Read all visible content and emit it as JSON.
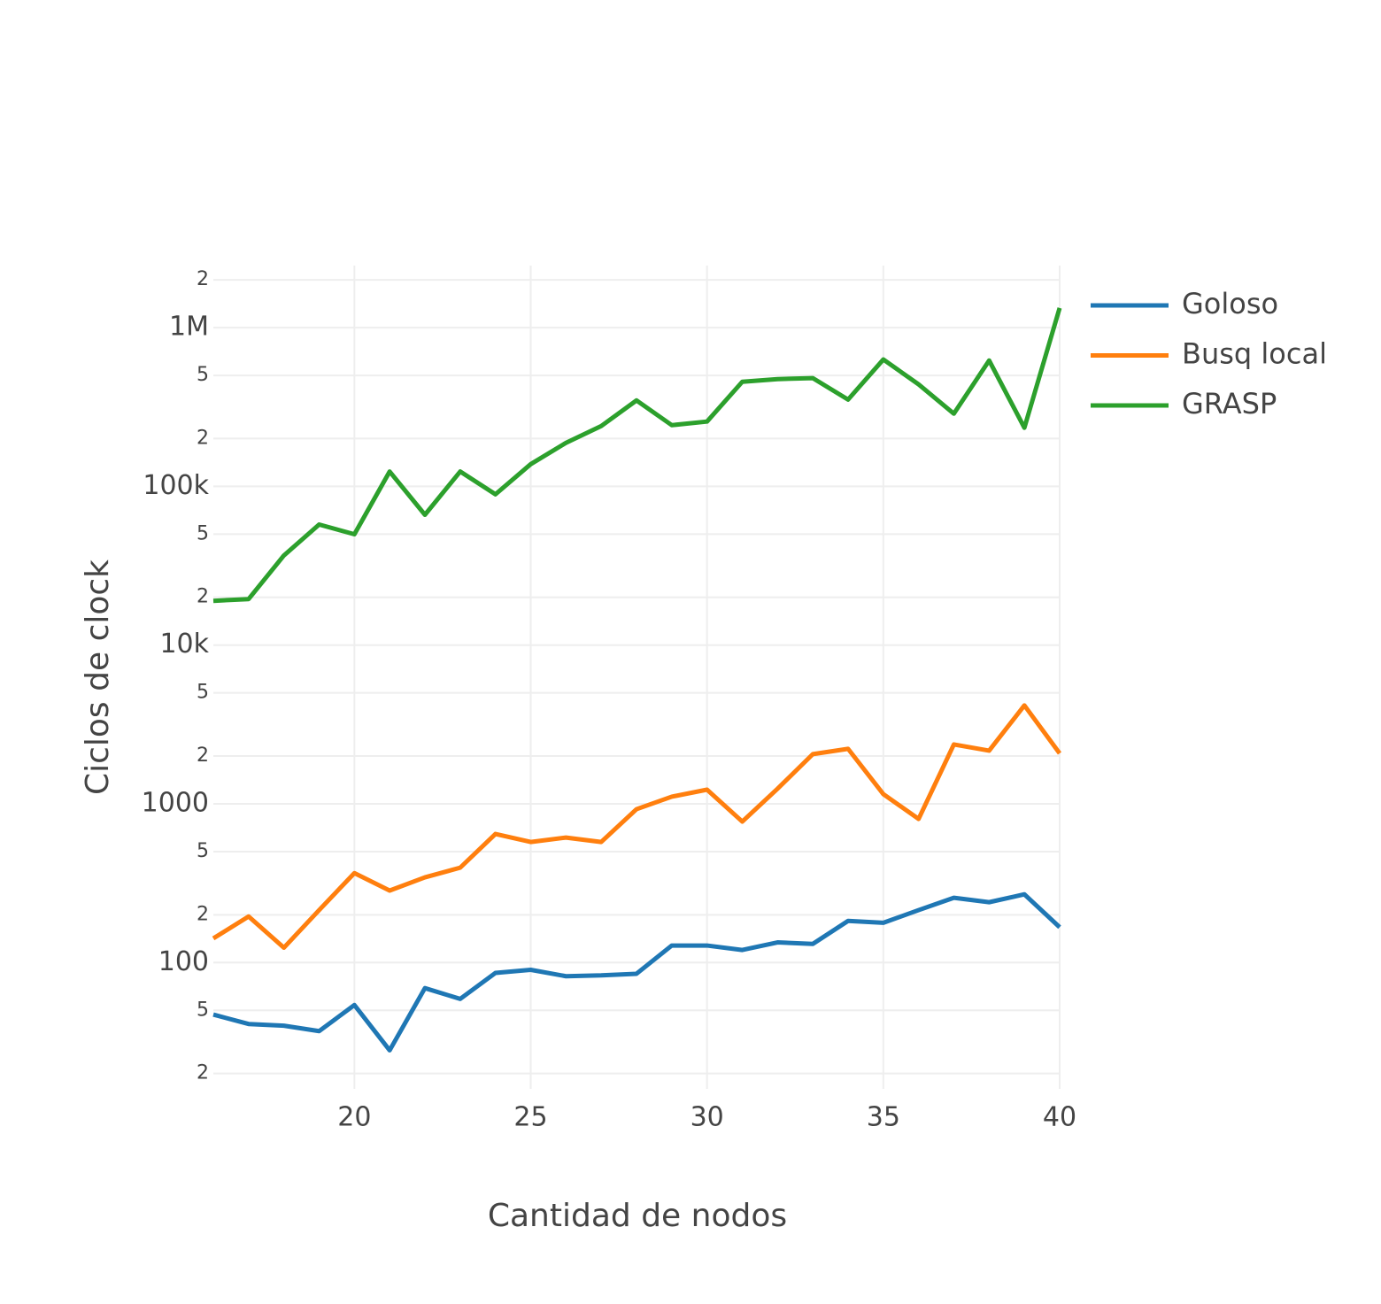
{
  "chart_data": {
    "type": "line",
    "x_label": "Cantidad de nodos",
    "y_label": "Ciclos de clock",
    "x": [
      16,
      17,
      18,
      19,
      20,
      21,
      22,
      23,
      24,
      25,
      26,
      27,
      28,
      29,
      30,
      31,
      32,
      33,
      34,
      35,
      36,
      37,
      38,
      39,
      40
    ],
    "series": [
      {
        "name": "Goloso",
        "color": "#1f77b4",
        "values": [
          47,
          41,
          40,
          37,
          54,
          28,
          69,
          59,
          86,
          90,
          82,
          83,
          85,
          128,
          128,
          120,
          134,
          131,
          183,
          178,
          214,
          256,
          240,
          269,
          167
        ]
      },
      {
        "name": "Busq local",
        "color": "#ff7f0e",
        "values": [
          142,
          195,
          124,
          214,
          366,
          284,
          344,
          396,
          646,
          575,
          613,
          575,
          925,
          1109,
          1228,
          773,
          1245,
          2056,
          2220,
          1151,
          803,
          2366,
          2162,
          4169,
          2080
        ]
      },
      {
        "name": "GRASP",
        "color": "#2ca02c",
        "values": [
          19000,
          19500,
          36700,
          57500,
          49900,
          124000,
          66200,
          124000,
          89100,
          138000,
          188000,
          240000,
          348000,
          243000,
          256000,
          456000,
          474000,
          481000,
          352000,
          630000,
          439000,
          287000,
          621000,
          234000,
          1330000
        ]
      }
    ],
    "xlim": [
      16,
      40
    ],
    "xticks": [
      20,
      25,
      30,
      35,
      40
    ],
    "ylim": [
      16,
      2460000
    ],
    "log_y": true,
    "yticks": [
      {
        "value": 20,
        "label": "2"
      },
      {
        "value": 50,
        "label": "5"
      },
      100,
      {
        "value": 200,
        "label": "2"
      },
      {
        "value": 500,
        "label": "5"
      },
      1000,
      {
        "value": 2000,
        "label": "2"
      },
      {
        "value": 5000,
        "label": "5"
      },
      {
        "value": 10000,
        "label": "10k"
      },
      {
        "value": 20000,
        "label": "2"
      },
      {
        "value": 50000,
        "label": "5"
      },
      {
        "value": 100000,
        "label": "100k"
      },
      {
        "value": 200000,
        "label": "2"
      },
      {
        "value": 500000,
        "label": "5"
      },
      {
        "value": 1000000,
        "label": "1M"
      },
      {
        "value": 2000000,
        "label": "2"
      }
    ],
    "grid": true,
    "legend": "right"
  }
}
